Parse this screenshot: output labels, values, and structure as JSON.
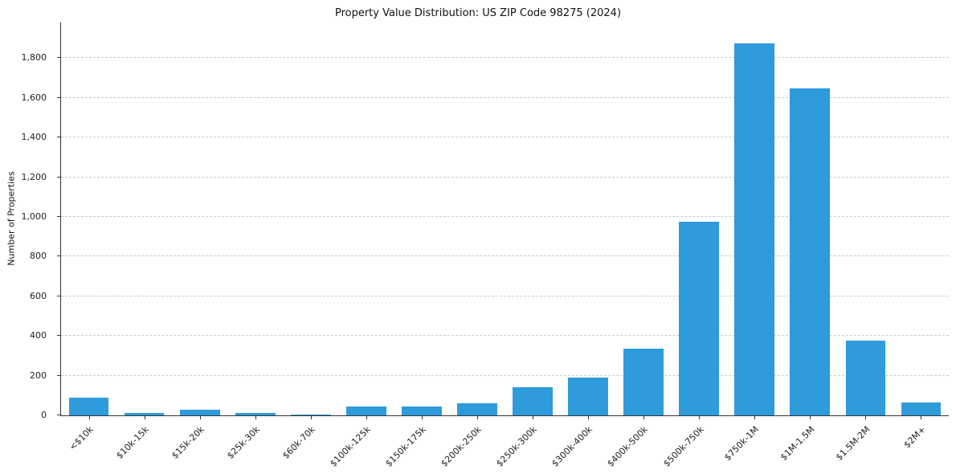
{
  "chart_data": {
    "type": "bar",
    "title": "Property Value Distribution: US ZIP Code 98275 (2024)",
    "xlabel": "",
    "ylabel": "Number of Properties",
    "categories": [
      "<$10k",
      "$10k-15k",
      "$15k-20k",
      "$25k-30k",
      "$60k-70k",
      "$100k-125k",
      "$150k-175k",
      "$200k-250k",
      "$250k-300k",
      "$300k-400k",
      "$400k-500k",
      "$500k-750k",
      "$750k-1M",
      "$1M-1.5M",
      "$1.5M-2M",
      "$2M+"
    ],
    "values": [
      90,
      12,
      30,
      12,
      5,
      45,
      45,
      60,
      140,
      190,
      335,
      975,
      1875,
      1650,
      375,
      65
    ],
    "ylim": [
      0,
      1980
    ],
    "yticks": [
      0,
      200,
      400,
      600,
      800,
      1000,
      1200,
      1400,
      1600,
      1800
    ],
    "ytick_labels": [
      "0",
      "200",
      "400",
      "600",
      "800",
      "1,000",
      "1,200",
      "1,400",
      "1,600",
      "1,800"
    ],
    "bar_color": "#2e9bdb",
    "grid": "horizontal-dashed",
    "legend": "none"
  }
}
